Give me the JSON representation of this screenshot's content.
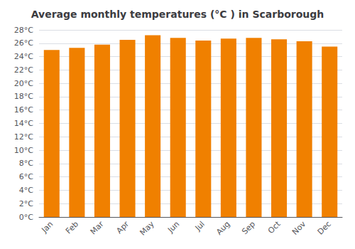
{
  "chart_data": {
    "type": "bar",
    "title": "Average monthly temperatures (°C ) in Scarborough",
    "categories": [
      "Jan",
      "Feb",
      "Mar",
      "Apr",
      "May",
      "Jun",
      "Jul",
      "Aug",
      "Sep",
      "Oct",
      "Nov",
      "Dec"
    ],
    "values": [
      25.0,
      25.3,
      25.8,
      26.5,
      27.2,
      26.8,
      26.4,
      26.7,
      26.8,
      26.6,
      26.3,
      25.5
    ],
    "color": "#F08000",
    "ylim": [
      0,
      28
    ],
    "yticks": [
      {
        "value": 0,
        "label": "0°C"
      },
      {
        "value": 2,
        "label": "2°C"
      },
      {
        "value": 4,
        "label": "4°C"
      },
      {
        "value": 6,
        "label": "6°C"
      },
      {
        "value": 8,
        "label": "8°C"
      },
      {
        "value": 10,
        "label": "10°C"
      },
      {
        "value": 12,
        "label": "12°C"
      },
      {
        "value": 14,
        "label": "14°C"
      },
      {
        "value": 16,
        "label": "16°C"
      },
      {
        "value": 18,
        "label": "18°C"
      },
      {
        "value": 20,
        "label": "20°C"
      },
      {
        "value": 22,
        "label": "22°C"
      },
      {
        "value": 24,
        "label": "24°C"
      },
      {
        "value": 26,
        "label": "26°C"
      },
      {
        "value": 28,
        "label": "28°C"
      }
    ],
    "grid": true
  }
}
